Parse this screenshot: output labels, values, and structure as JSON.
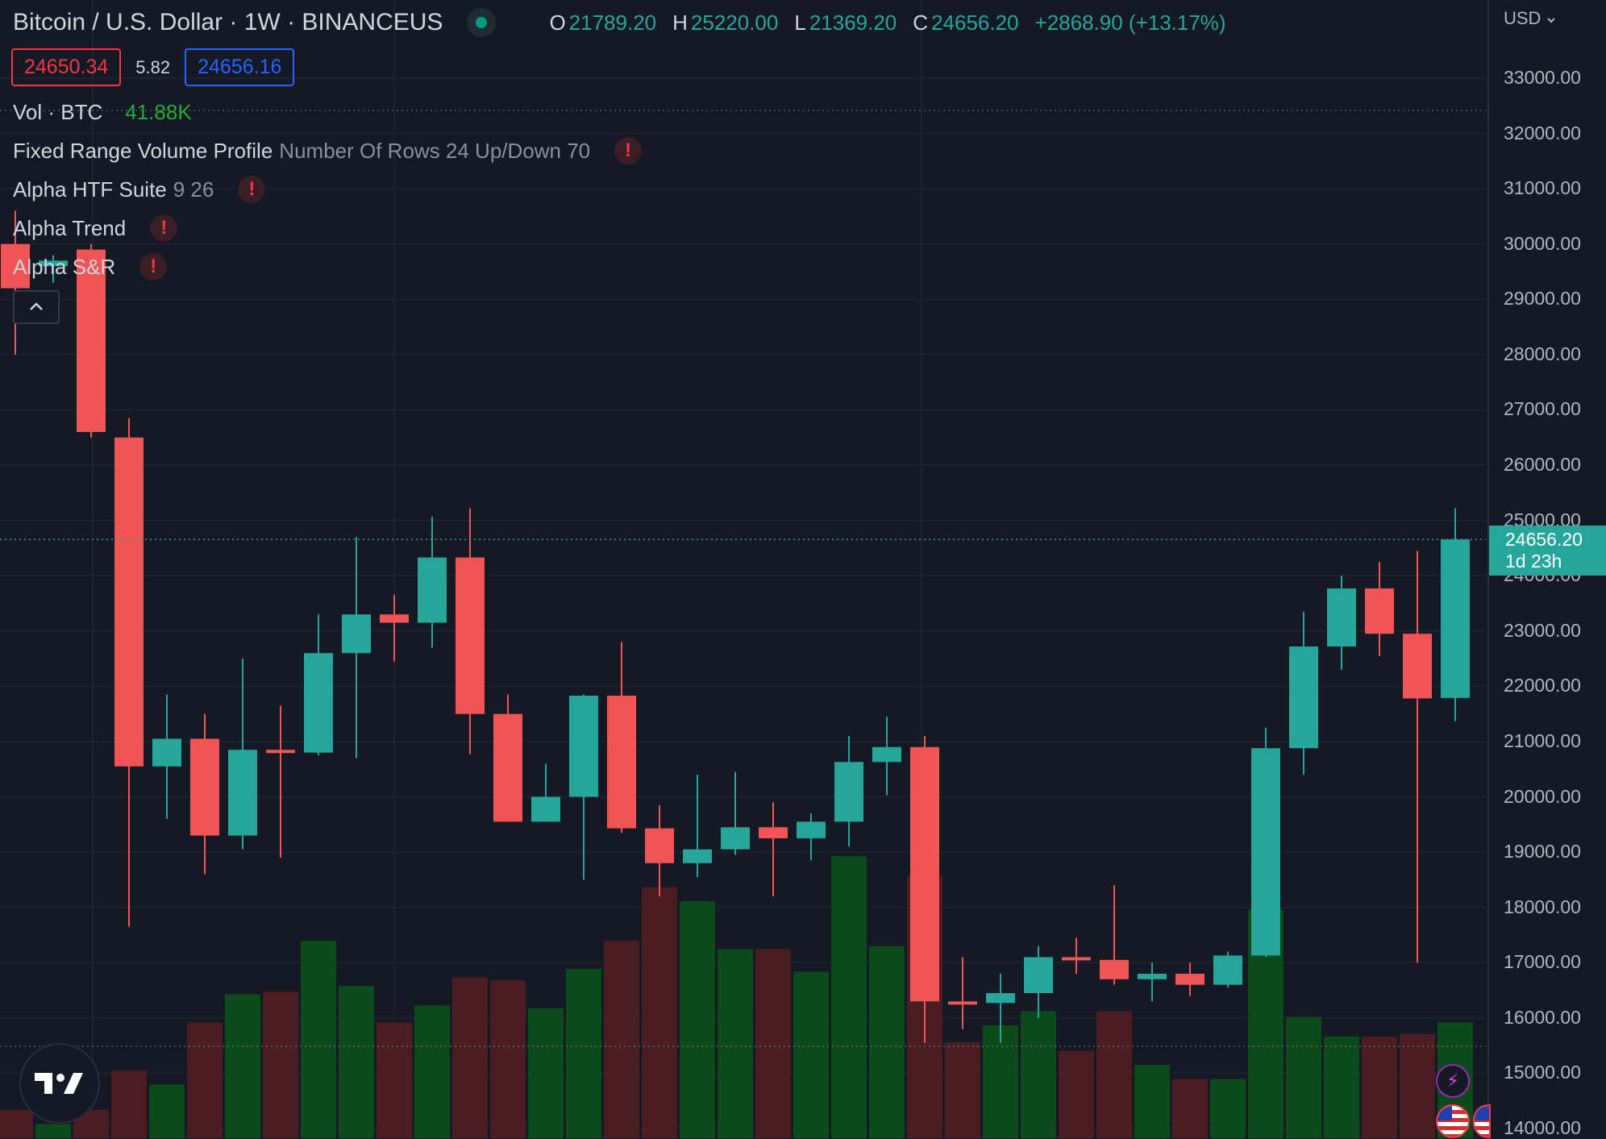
{
  "header": {
    "symbol_title": "Bitcoin / U.S. Dollar · 1W · BINANCEUS",
    "ohlc": {
      "o_label": "O",
      "o_value": "21789.20",
      "h_label": "H",
      "h_value": "25220.00",
      "l_label": "L",
      "l_value": "21369.20",
      "c_label": "C",
      "c_value": "24656.20",
      "change": "+2868.90 (+13.17%)"
    },
    "bid_price": "24650.34",
    "spread": "5.82",
    "ask_price": "24656.16"
  },
  "indicators": [
    {
      "name": "Vol · BTC",
      "params": "",
      "value": "41.88K"
    },
    {
      "name": "Fixed Range Volume Profile",
      "params": "Number Of Rows 24 Up/Down 70"
    },
    {
      "name": "Alpha HTF Suite",
      "params": "9 26"
    },
    {
      "name": "Alpha Trend",
      "params": ""
    },
    {
      "name": "Alpha S&R",
      "params": ""
    }
  ],
  "warn_glyph": "!",
  "collapse_icon": "chevron-up-icon",
  "axis": {
    "currency": "USD",
    "ticks": [
      "33000.00",
      "32000.00",
      "31000.00",
      "30000.00",
      "29000.00",
      "28000.00",
      "27000.00",
      "26000.00",
      "25000.00",
      "24000.00",
      "23000.00",
      "22000.00",
      "21000.00",
      "20000.00",
      "19000.00",
      "18000.00",
      "17000.00",
      "16000.00",
      "15000.00",
      "14000.00"
    ]
  },
  "last_price": {
    "value": "24656.20",
    "countdown": "1d 23h"
  },
  "colors": {
    "up": "#26a69a",
    "down": "#f05454",
    "vol_up": "#0c4a1c",
    "vol_down": "#4a1d22",
    "bg": "#151924",
    "grid": "#262a35"
  },
  "chart_data": {
    "type": "candlestick",
    "interval": "1W",
    "ylim": [
      14000,
      33200
    ],
    "grid": true,
    "candles": [
      {
        "o": 30000,
        "h": 30600,
        "l": 28000,
        "c": 29200
      },
      {
        "o": 29600,
        "h": 29800,
        "l": 29300,
        "c": 29700
      },
      {
        "o": 29900,
        "h": 30000,
        "l": 26500,
        "c": 26600
      },
      {
        "o": 26500,
        "h": 26850,
        "l": 17650,
        "c": 20550
      },
      {
        "o": 20550,
        "h": 21850,
        "l": 19600,
        "c": 21050
      },
      {
        "o": 21050,
        "h": 21500,
        "l": 18600,
        "c": 19300
      },
      {
        "o": 19300,
        "h": 22500,
        "l": 19050,
        "c": 20850
      },
      {
        "o": 20850,
        "h": 21650,
        "l": 18900,
        "c": 20800
      },
      {
        "o": 20800,
        "h": 23300,
        "l": 20750,
        "c": 22600
      },
      {
        "o": 22600,
        "h": 24700,
        "l": 20700,
        "c": 23300
      },
      {
        "o": 23300,
        "h": 23650,
        "l": 22450,
        "c": 23150
      },
      {
        "o": 23150,
        "h": 25070,
        "l": 22700,
        "c": 24330
      },
      {
        "o": 24330,
        "h": 25220,
        "l": 20770,
        "c": 21500
      },
      {
        "o": 21500,
        "h": 21850,
        "l": 19550,
        "c": 19550
      },
      {
        "o": 19550,
        "h": 20600,
        "l": 19550,
        "c": 20000
      },
      {
        "o": 20000,
        "h": 21850,
        "l": 18500,
        "c": 21830
      },
      {
        "o": 21830,
        "h": 22800,
        "l": 19350,
        "c": 19430
      },
      {
        "o": 19430,
        "h": 19850,
        "l": 18200,
        "c": 18800
      },
      {
        "o": 18800,
        "h": 20400,
        "l": 18550,
        "c": 19050
      },
      {
        "o": 19050,
        "h": 20450,
        "l": 18950,
        "c": 19450
      },
      {
        "o": 19450,
        "h": 19900,
        "l": 18200,
        "c": 19250
      },
      {
        "o": 19250,
        "h": 19700,
        "l": 18850,
        "c": 19550
      },
      {
        "o": 19550,
        "h": 21100,
        "l": 19100,
        "c": 20630
      },
      {
        "o": 20630,
        "h": 21450,
        "l": 20030,
        "c": 20900
      },
      {
        "o": 20900,
        "h": 21100,
        "l": 15550,
        "c": 16300
      },
      {
        "o": 16300,
        "h": 17100,
        "l": 15800,
        "c": 16270
      },
      {
        "o": 16270,
        "h": 16800,
        "l": 15550,
        "c": 16450
      },
      {
        "o": 16450,
        "h": 17300,
        "l": 16000,
        "c": 17100
      },
      {
        "o": 17100,
        "h": 17450,
        "l": 16800,
        "c": 17050
      },
      {
        "o": 17050,
        "h": 18400,
        "l": 16600,
        "c": 16700
      },
      {
        "o": 16700,
        "h": 17000,
        "l": 16300,
        "c": 16800
      },
      {
        "o": 16800,
        "h": 17000,
        "l": 16400,
        "c": 16600
      },
      {
        "o": 16600,
        "h": 17200,
        "l": 16550,
        "c": 17130
      },
      {
        "o": 17130,
        "h": 21250,
        "l": 17100,
        "c": 20880
      },
      {
        "o": 20880,
        "h": 23350,
        "l": 20400,
        "c": 22720
      },
      {
        "o": 22720,
        "h": 24000,
        "l": 22300,
        "c": 23770
      },
      {
        "o": 23770,
        "h": 24250,
        "l": 22550,
        "c": 22950
      },
      {
        "o": 22950,
        "h": 24450,
        "l": 17000,
        "c": 21780
      },
      {
        "o": 21789.2,
        "h": 25220,
        "l": 21369.2,
        "c": 24656.2
      }
    ],
    "volume_bars": [
      {
        "dir": "down",
        "v": 0.1
      },
      {
        "dir": "up",
        "v": 0.05
      },
      {
        "dir": "down",
        "v": 0.1
      },
      {
        "dir": "down",
        "v": 0.24
      },
      {
        "dir": "up",
        "v": 0.19
      },
      {
        "dir": "down",
        "v": 0.41
      },
      {
        "dir": "up",
        "v": 0.51
      },
      {
        "dir": "down",
        "v": 0.52
      },
      {
        "dir": "up",
        "v": 0.7
      },
      {
        "dir": "up",
        "v": 0.54
      },
      {
        "dir": "down",
        "v": 0.41
      },
      {
        "dir": "up",
        "v": 0.47
      },
      {
        "dir": "down",
        "v": 0.57
      },
      {
        "dir": "down",
        "v": 0.56
      },
      {
        "dir": "up",
        "v": 0.46
      },
      {
        "dir": "up",
        "v": 0.6
      },
      {
        "dir": "down",
        "v": 0.7
      },
      {
        "dir": "down",
        "v": 0.89
      },
      {
        "dir": "up",
        "v": 0.84
      },
      {
        "dir": "up",
        "v": 0.67
      },
      {
        "dir": "down",
        "v": 0.67
      },
      {
        "dir": "up",
        "v": 0.59
      },
      {
        "dir": "up",
        "v": 1.0
      },
      {
        "dir": "up",
        "v": 0.68
      },
      {
        "dir": "down",
        "v": 0.93
      },
      {
        "dir": "down",
        "v": 0.34
      },
      {
        "dir": "up",
        "v": 0.4
      },
      {
        "dir": "up",
        "v": 0.45
      },
      {
        "dir": "down",
        "v": 0.31
      },
      {
        "dir": "down",
        "v": 0.45
      },
      {
        "dir": "up",
        "v": 0.26
      },
      {
        "dir": "down",
        "v": 0.21
      },
      {
        "dir": "up",
        "v": 0.21
      },
      {
        "dir": "up",
        "v": 0.81
      },
      {
        "dir": "up",
        "v": 0.43
      },
      {
        "dir": "up",
        "v": 0.36
      },
      {
        "dir": "down",
        "v": 0.36
      },
      {
        "dir": "down",
        "v": 0.37
      },
      {
        "dir": "up",
        "v": 0.41
      }
    ]
  }
}
